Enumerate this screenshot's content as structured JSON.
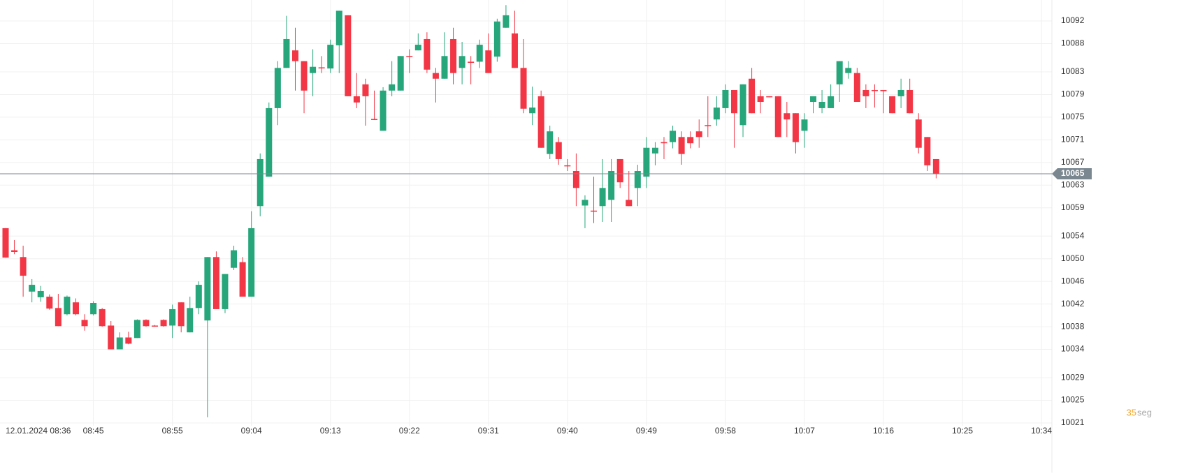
{
  "chart_data": {
    "type": "candlestick",
    "up_color": "#26a67a",
    "down_color": "#f23645",
    "grid": true,
    "ylim": [
      10021,
      10092
    ],
    "yticks": [
      10092,
      10088,
      10083,
      10079,
      10075,
      10071,
      10067,
      10063,
      10059,
      10054,
      10050,
      10046,
      10042,
      10038,
      10034,
      10029,
      10025,
      10021
    ],
    "categories": [
      "12.01.2024 08:36",
      null,
      null,
      null,
      null,
      null,
      null,
      null,
      null,
      null,
      "08:45",
      null,
      null,
      null,
      null,
      null,
      null,
      null,
      null,
      "08:55",
      null,
      null,
      null,
      null,
      null,
      null,
      null,
      null,
      "09:04",
      null,
      null,
      null,
      null,
      null,
      null,
      null,
      null,
      "09:13",
      null,
      null,
      null,
      null,
      null,
      null,
      null,
      null,
      "09:22",
      null,
      null,
      null,
      null,
      null,
      null,
      null,
      null,
      "09:31",
      null,
      null,
      null,
      null,
      null,
      null,
      null,
      null,
      "09:40",
      null,
      null,
      null,
      null,
      null,
      null,
      null,
      null,
      "09:49",
      null,
      null,
      null,
      null,
      null,
      null,
      null,
      null,
      "09:58",
      null,
      null,
      null,
      null,
      null,
      null,
      null,
      null,
      "10:07",
      null,
      null,
      null,
      null,
      null,
      null,
      null,
      null,
      "10:16",
      null,
      null,
      null,
      null,
      null,
      null,
      null,
      null,
      "10:25",
      null,
      null,
      null,
      null,
      null,
      null,
      null,
      null,
      "10:34"
    ],
    "open": [
      10055.4,
      10051.5,
      10050.3,
      10044.2,
      10043.2,
      10043.3,
      10041.3,
      10040.2,
      10042.3,
      10039.2,
      10040.2,
      10041.1,
      10038.2,
      10034,
      10036.1,
      10036,
      10039.2,
      10038.2,
      10039.2,
      10038.2,
      10042.3,
      10037,
      10041.3,
      10039.1,
      10050.3,
      10041.1,
      10048.4,
      10049.4,
      10043.3,
      10059.3,
      10064.5,
      10076.6,
      10083.7,
      10086.8,
      10084.9,
      10082.8,
      10083.8,
      10083.6,
      10087.7,
      10093,
      10078.7,
      10080.8,
      10074.7,
      10072.6,
      10079.7,
      10079.7,
      10085.8,
      10086.8,
      10088.8,
      10082.8,
      10081.8,
      10088.8,
      10083.7,
      10084.8,
      10084.8,
      10086.8,
      10085.7,
      10090.8,
      10089.8,
      10083.7,
      10075.7,
      10078.7,
      10068.5,
      10070.6,
      10066.5,
      10065.5,
      10059.4,
      10058.5,
      10059.3,
      10060.4,
      10067.6,
      10060.4,
      10062.5,
      10064.5,
      10068.6,
      10070.6,
      10070.6,
      10071.5,
      10071.5,
      10072.5,
      10073.6,
      10074.6,
      10076.6,
      10079.8,
      10073.6,
      10081.8,
      10078.7,
      10078.7,
      10078.7,
      10075.7,
      10075.7,
      10072.6,
      10077.7,
      10076.6,
      10076.6,
      10080.8,
      10082.8,
      10082.8,
      10079.8,
      10079.8,
      10079.8,
      10078.7,
      10078.7,
      10079.8,
      10074.6,
      10071.5,
      10067.6,
      null,
      null,
      null,
      null,
      null,
      null,
      null,
      null,
      null,
      null,
      null,
      null
    ],
    "high": [
      10055.4,
      10053.3,
      10052.3,
      10046.4,
      10045.2,
      10043.7,
      10043.8,
      10043.5,
      10043,
      10040.2,
      10042.5,
      10041.3,
      10039,
      10037,
      10037.1,
      10039.3,
      10039.3,
      10038.3,
      10039.3,
      10041.9,
      10042.3,
      10043.3,
      10046,
      10050.3,
      10051.3,
      10047.3,
      10052.3,
      10050.3,
      10058.4,
      10068.6,
      10077.6,
      10084.9,
      10092.9,
      10090.8,
      10084.9,
      10087,
      10085.8,
      10088.7,
      10093.8,
      10093,
      10082.8,
      10081.8,
      10079.7,
      10080.3,
      10084.9,
      10085.8,
      10087,
      10089.8,
      10090,
      10083.7,
      10090,
      10090.8,
      10088.3,
      10085.8,
      10088.7,
      10089.8,
      10092.4,
      10094.8,
      10093.8,
      10088.8,
      10080.4,
      10079.7,
      10073.5,
      10071.5,
      10067.6,
      10068.6,
      10061.2,
      10064.5,
      10067.6,
      10067.6,
      10067.6,
      10065.5,
      10066.6,
      10071.5,
      10070.6,
      10071.5,
      10073.5,
      10072.5,
      10072.5,
      10074.6,
      10078.7,
      10078.7,
      10080.8,
      10079.8,
      10080.8,
      10083.7,
      10079.8,
      10078.7,
      10078.7,
      10077.7,
      10075.7,
      10075.7,
      10078.7,
      10079.8,
      10080.8,
      10084.9,
      10084.9,
      10083.7,
      10080.8,
      10080.8,
      10079.8,
      10078.7,
      10081.8,
      10081.8,
      10075.7,
      10071.5,
      10067.6,
      null,
      null,
      null,
      null,
      null,
      null,
      null,
      null,
      null,
      null,
      null,
      null
    ],
    "low": [
      10050.2,
      10050.8,
      10043.3,
      10042.3,
      10042.4,
      10041,
      10038.1,
      10040,
      10040,
      10037.3,
      10040,
      10038,
      10034,
      10034,
      10034.9,
      10036,
      10038,
      10038,
      10038,
      10036,
      10037,
      10037,
      10040.2,
      10022,
      10041.1,
      10040.4,
      10048,
      10043.3,
      10043.3,
      10057.5,
      10064.5,
      10073.6,
      10083.7,
      10079.7,
      10075.7,
      10078.7,
      10082.8,
      10082.8,
      10082.8,
      10078.7,
      10076.6,
      10073.5,
      10074.5,
      10072.6,
      10078.7,
      10079.7,
      10082.8,
      10086.8,
      10082.8,
      10077.6,
      10081.8,
      10080.8,
      10080.8,
      10080.8,
      10083.7,
      10082.8,
      10084.8,
      10090.8,
      10083.7,
      10075.7,
      10073.6,
      10069.6,
      10067.6,
      10066.6,
      10065.5,
      10059.3,
      10055.4,
      10056.3,
      10056.5,
      10056.5,
      10062.5,
      10059.3,
      10059.3,
      10062.5,
      10066.5,
      10067.6,
      10069.5,
      10066.6,
      10069.5,
      10069.6,
      10071.5,
      10073.5,
      10075.7,
      10069.6,
      10071.5,
      10075.7,
      10075.7,
      10078.5,
      10071.5,
      10071.5,
      10068.6,
      10069.6,
      10075.7,
      10075.7,
      10076.6,
      10077.7,
      10081.8,
      10077.7,
      10076.6,
      10076.7,
      10075.7,
      10075.7,
      10076.6,
      10075.7,
      10068.6,
      10065.5,
      10064.2,
      null,
      null,
      null,
      null,
      null,
      null,
      null,
      null,
      null,
      null,
      null,
      null
    ],
    "close": [
      10050.2,
      10051.2,
      10047,
      10045.4,
      10044.3,
      10041.2,
      10038.1,
      10043.3,
      10040.2,
      10038.1,
      10042.2,
      10038.1,
      10034,
      10036.1,
      10035,
      10039.2,
      10038.1,
      10038.1,
      10038.1,
      10041.1,
      10038.1,
      10041.3,
      10045.4,
      10050.3,
      10041.1,
      10047.3,
      10051.5,
      10043.3,
      10055.4,
      10067.6,
      10076.6,
      10083.7,
      10088.8,
      10084.9,
      10079.7,
      10083.9,
      10083.7,
      10087.8,
      10093.8,
      10078.7,
      10077.6,
      10078.7,
      10074.5,
      10079.7,
      10080.8,
      10085.8,
      10085.7,
      10087.8,
      10083.4,
      10081.8,
      10085.8,
      10082.8,
      10085.8,
      10084.6,
      10087.8,
      10082.8,
      10091.9,
      10093,
      10083.7,
      10076.5,
      10076.7,
      10069.6,
      10072.5,
      10067.6,
      10066.4,
      10062.5,
      10060.4,
      10058.4,
      10062.5,
      10065.5,
      10063.5,
      10059.3,
      10065.5,
      10069.6,
      10069.6,
      10070.4,
      10072.6,
      10068.5,
      10070.4,
      10071.5,
      10073.5,
      10076.7,
      10079.8,
      10075.7,
      10080.8,
      10075.7,
      10077.7,
      10078.6,
      10071.5,
      10074.6,
      10070.6,
      10074.6,
      10078.7,
      10077.7,
      10078.7,
      10084.9,
      10083.7,
      10077.7,
      10078.7,
      10079.7,
      10079.6,
      10075.7,
      10079.8,
      10075.7,
      10069.6,
      10066.5,
      10065,
      null,
      null,
      null,
      null,
      null,
      null,
      null,
      null,
      null,
      null,
      null,
      null
    ],
    "countdown": 35,
    "countdown_unit": "seg"
  }
}
